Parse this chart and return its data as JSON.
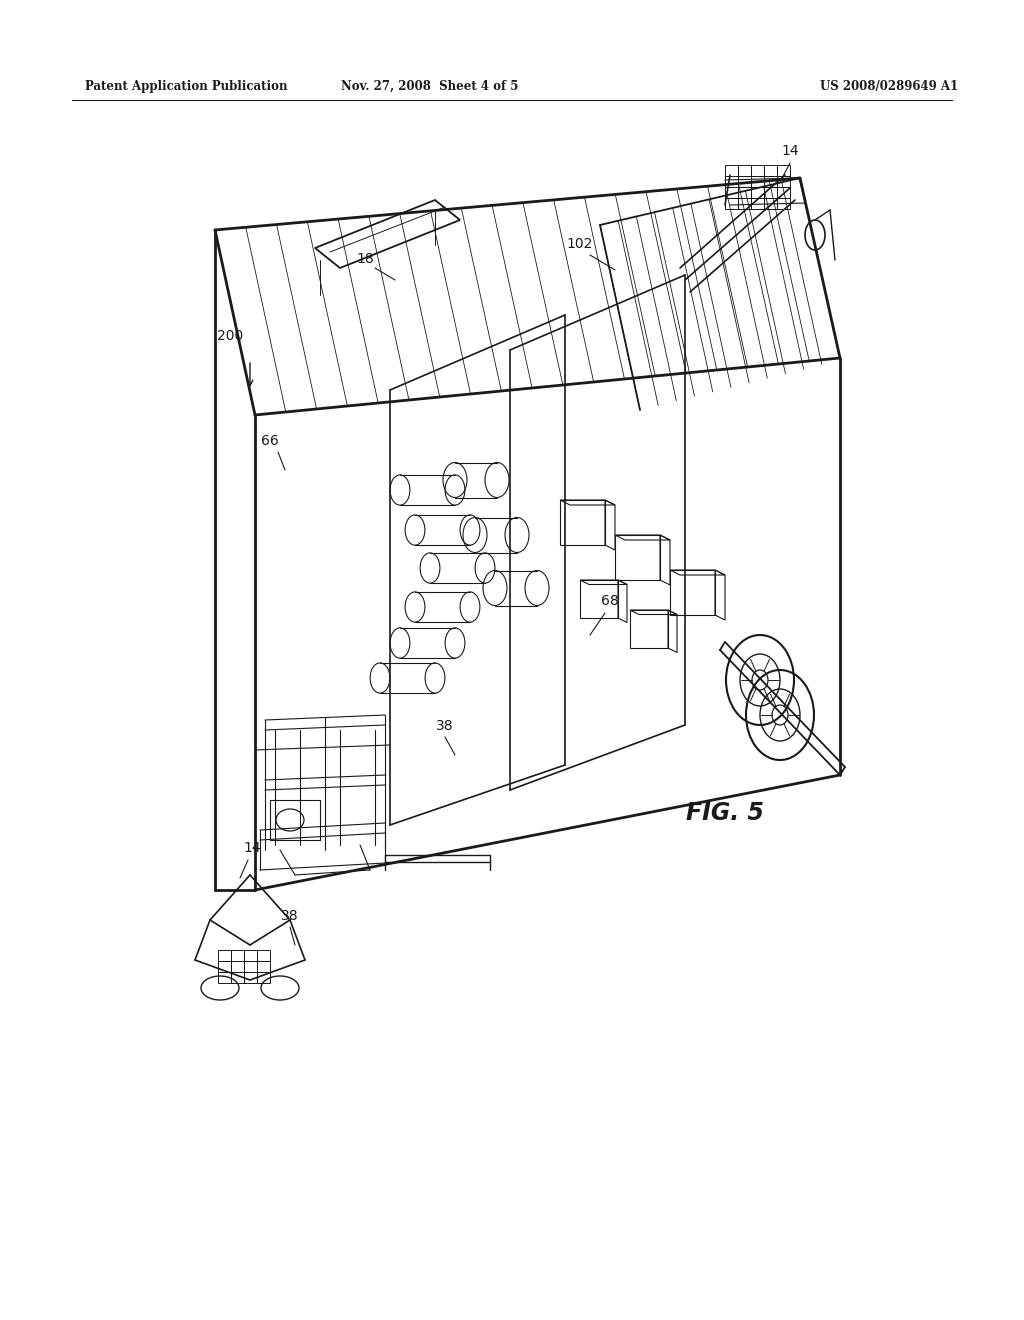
{
  "background_color": "#ffffff",
  "header_left": "Patent Application Publication",
  "header_mid": "Nov. 27, 2008  Sheet 4 of 5",
  "header_right": "US 2008/0289649 A1",
  "fig_label": "FIG. 5",
  "line_color": "#1a1a1a",
  "text_color": "#1a1a1a",
  "lw_outer": 2.0,
  "lw_inner": 1.2,
  "lw_thin": 0.8
}
